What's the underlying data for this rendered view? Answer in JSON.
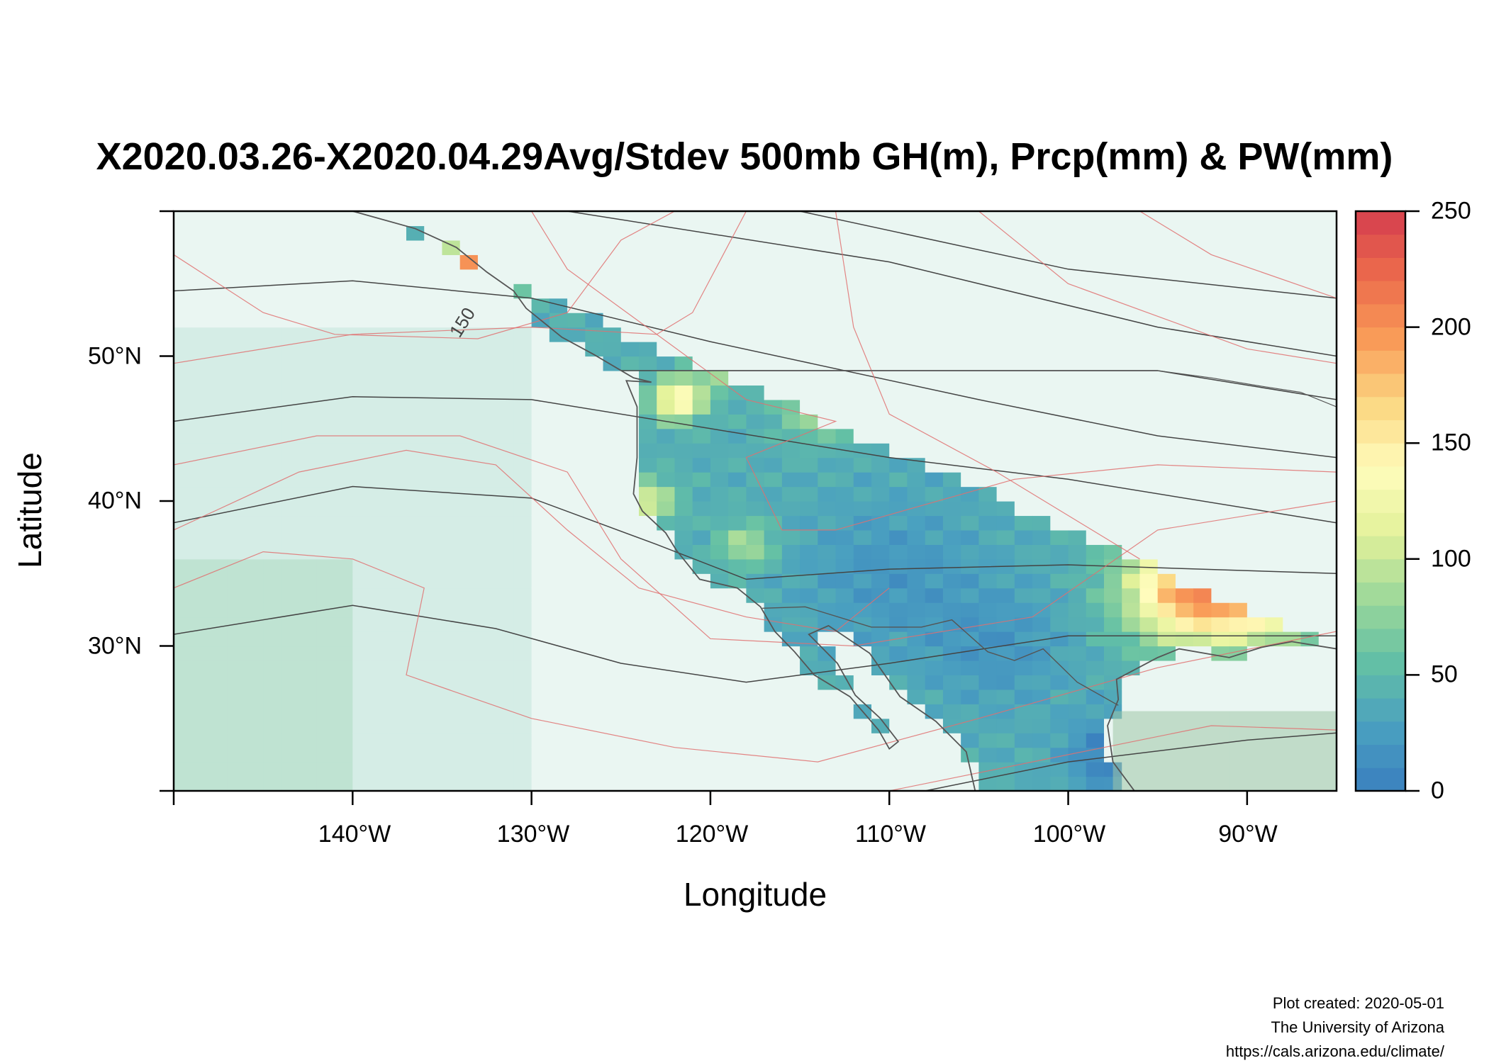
{
  "title": "X2020.03.26-X2020.04.29Avg/Stdev 500mb GH(m), Prcp(mm) & PW(mm)",
  "axes": {
    "xlabel": "Longitude",
    "ylabel": "Latitude",
    "x_ticks": [
      "140°W",
      "130°W",
      "120°W",
      "110°W",
      "100°W",
      "90°W"
    ],
    "y_ticks": [
      "50°N",
      "40°N",
      "30°N"
    ],
    "colorbar_ticks": [
      "250",
      "200",
      "150",
      "100",
      "50",
      "0"
    ]
  },
  "contour_label": "150",
  "credits": {
    "created": "Plot created: 2020-05-01",
    "org": "The University of Arizona",
    "url": "https://cals.arizona.edu/climate/"
  },
  "chart_data": {
    "type": "heatmap",
    "title": "X2020.03.26-X2020.04.29Avg/Stdev 500mb GH(m), Prcp(mm) & PW(mm)",
    "xlabel": "Longitude",
    "ylabel": "Latitude",
    "xlim": [
      -150,
      -85
    ],
    "ylim": [
      20,
      60
    ],
    "x_ticks": [
      -140,
      -130,
      -120,
      -110,
      -100,
      -90
    ],
    "y_ticks": [
      30,
      40,
      50
    ],
    "colorbar": {
      "range": [
        0,
        250
      ],
      "ticks": [
        0,
        50,
        100,
        150,
        200,
        250
      ],
      "levels": 25,
      "palette": [
        "#3a7fbf",
        "#4aa0c0",
        "#63c0a5",
        "#9ed89a",
        "#e3f29a",
        "#fffcbc",
        "#fbd883",
        "#f99c58",
        "#ec6a4c",
        "#d53e4f"
      ]
    },
    "grid": false,
    "colors": {
      "ocean_low": "#eaf6f2",
      "ocean_mid": "#d5ede6",
      "ocean_high": "#bfe3d2",
      "land_dry": "#72aacf",
      "contour_gh": "#444444",
      "contour_stdev": "#e07070",
      "coast": "#555555"
    }
  }
}
